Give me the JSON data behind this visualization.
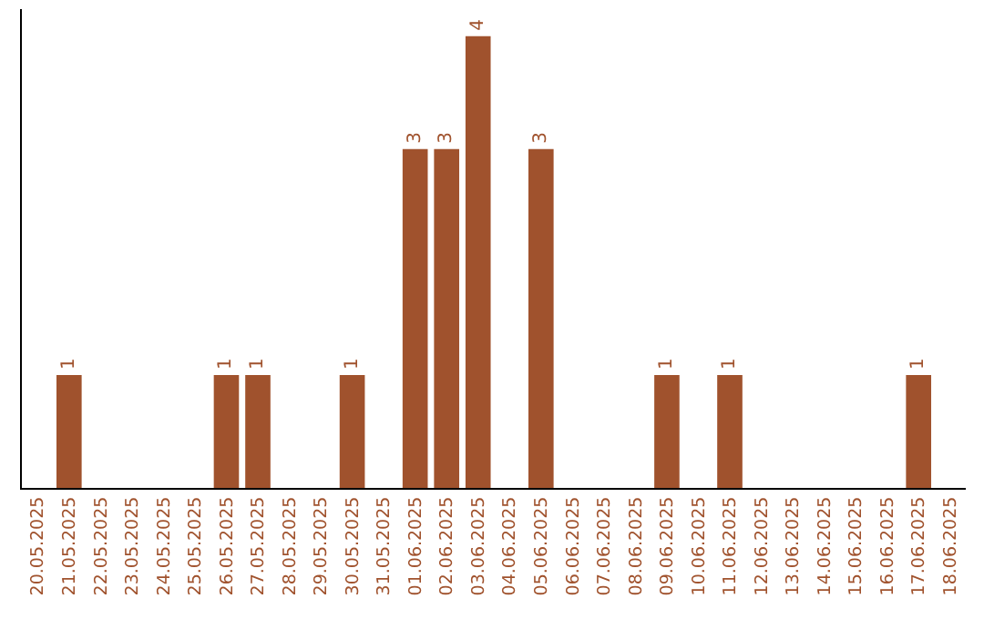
{
  "chart_data": {
    "type": "bar",
    "categories": [
      "20.05.2025",
      "21.05.2025",
      "22.05.2025",
      "23.05.2025",
      "24.05.2025",
      "25.05.2025",
      "26.05.2025",
      "27.05.2025",
      "28.05.2025",
      "29.05.2025",
      "30.05.2025",
      "31.05.2025",
      "01.06.2025",
      "02.06.2025",
      "03.06.2025",
      "04.06.2025",
      "05.06.2025",
      "06.06.2025",
      "07.06.2025",
      "08.06.2025",
      "09.06.2025",
      "10.06.2025",
      "11.06.2025",
      "12.06.2025",
      "13.06.2025",
      "14.06.2025",
      "15.06.2025",
      "16.06.2025",
      "17.06.2025",
      "18.06.2025"
    ],
    "values": [
      0,
      1,
      0,
      0,
      0,
      0,
      1,
      1,
      0,
      0,
      1,
      0,
      3,
      3,
      4,
      0,
      3,
      0,
      0,
      0,
      1,
      0,
      1,
      0,
      0,
      0,
      0,
      0,
      1,
      0
    ],
    "value_labels": [
      null,
      "1",
      null,
      null,
      null,
      null,
      "1",
      "1",
      null,
      null,
      "1",
      null,
      "3",
      "3",
      "4",
      null,
      "3",
      null,
      null,
      null,
      "1",
      null,
      "1",
      null,
      null,
      null,
      null,
      null,
      "1",
      null
    ],
    "color": "#a0522d",
    "tick_labels": "x"
  }
}
